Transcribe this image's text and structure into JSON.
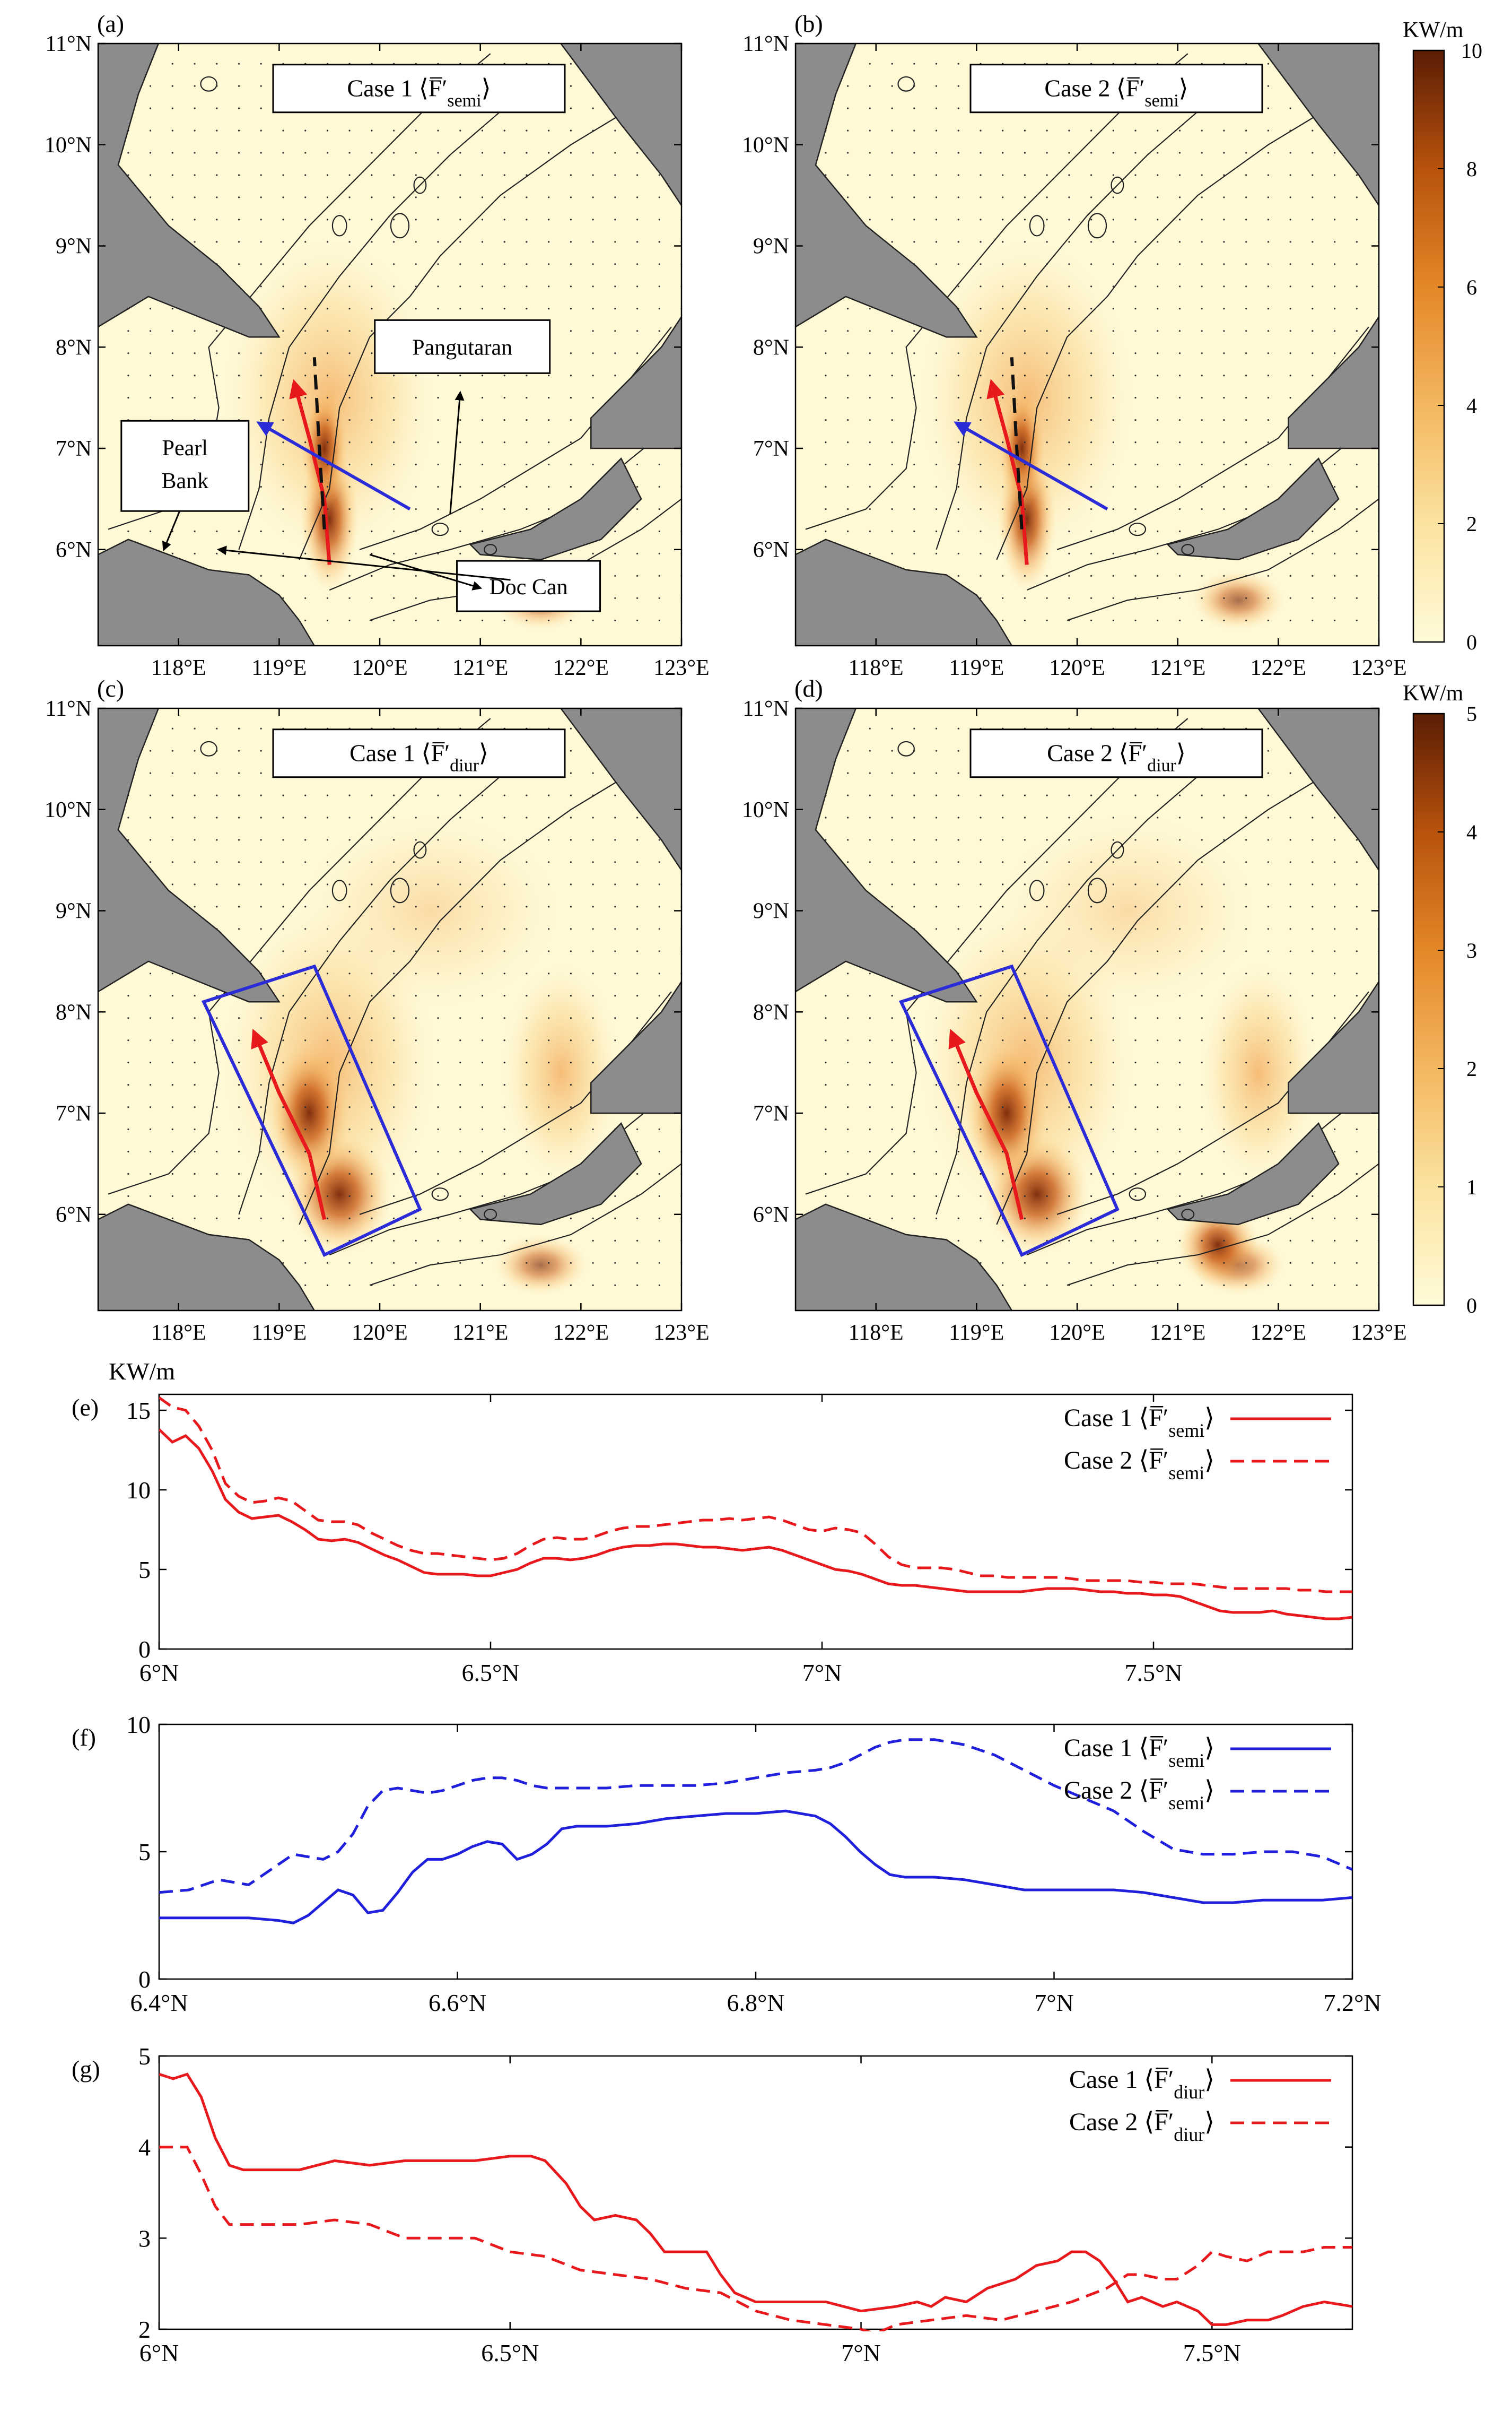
{
  "maps": {
    "x_ticks": [
      "118°E",
      "119°E",
      "120°E",
      "121°E",
      "122°E",
      "123°E"
    ],
    "y_ticks": [
      "11°N",
      "10°N",
      "9°N",
      "8°N",
      "7°N",
      "6°N"
    ],
    "lon_range": [
      117.2,
      123.0
    ],
    "lat_range": [
      5.05,
      11.0
    ],
    "land_color": "#8c8c8c",
    "ocean_color": "#fff9d6",
    "panels": [
      {
        "letter": "(a)",
        "case": "Case 1",
        "sub": "semi",
        "cmap_max": 10,
        "labels": [
          "Pangutaran",
          "Pearl\nBank",
          "Doc Can"
        ],
        "arrows": [
          "red",
          "blue"
        ],
        "box": false
      },
      {
        "letter": "(b)",
        "case": "Case 2",
        "sub": "semi",
        "cmap_max": 10,
        "labels": [],
        "arrows": [
          "red",
          "blue"
        ],
        "box": false
      },
      {
        "letter": "(c)",
        "case": "Case 1",
        "sub": "diur",
        "cmap_max": 5,
        "labels": [],
        "arrows": [
          "red"
        ],
        "box": true
      },
      {
        "letter": "(d)",
        "case": "Case 2",
        "sub": "diur",
        "cmap_max": 5,
        "labels": [],
        "arrows": [
          "red"
        ],
        "box": true
      }
    ],
    "colorbars": [
      {
        "unit": "KW/m",
        "ticks": [
          0,
          2,
          4,
          6,
          8,
          10
        ]
      },
      {
        "unit": "KW/m",
        "ticks": [
          0,
          1,
          2,
          3,
          4,
          5
        ]
      }
    ]
  },
  "chart_data": [
    {
      "type": "line",
      "panel": "(e)",
      "ylabel": "KW/m",
      "xlim": [
        6.0,
        7.8
      ],
      "ylim": [
        0,
        16
      ],
      "x_ticks": [
        6.0,
        6.5,
        7.0,
        7.5
      ],
      "x_tick_labels": [
        "6°N",
        "6.5°N",
        "7°N",
        "7.5°N"
      ],
      "y_ticks": [
        0,
        5,
        10,
        15
      ],
      "color": "#e8191d",
      "legend": "top-right",
      "series": [
        {
          "case": "Case 1",
          "sub": "semi",
          "dash": false,
          "x": [
            6.0,
            6.02,
            6.04,
            6.06,
            6.08,
            6.1,
            6.12,
            6.14,
            6.16,
            6.18,
            6.2,
            6.22,
            6.24,
            6.26,
            6.28,
            6.3,
            6.32,
            6.34,
            6.36,
            6.38,
            6.4,
            6.42,
            6.44,
            6.46,
            6.48,
            6.5,
            6.52,
            6.54,
            6.56,
            6.58,
            6.6,
            6.62,
            6.64,
            6.66,
            6.68,
            6.7,
            6.72,
            6.74,
            6.76,
            6.78,
            6.8,
            6.82,
            6.84,
            6.86,
            6.88,
            6.9,
            6.92,
            6.94,
            6.96,
            6.98,
            7.0,
            7.02,
            7.04,
            7.06,
            7.08,
            7.1,
            7.12,
            7.14,
            7.16,
            7.18,
            7.2,
            7.22,
            7.24,
            7.26,
            7.28,
            7.3,
            7.32,
            7.34,
            7.36,
            7.38,
            7.4,
            7.42,
            7.44,
            7.46,
            7.48,
            7.5,
            7.52,
            7.54,
            7.56,
            7.58,
            7.6,
            7.62,
            7.64,
            7.66,
            7.68,
            7.7,
            7.72,
            7.74,
            7.76,
            7.78,
            7.8
          ],
          "y": [
            13.8,
            13.0,
            13.4,
            12.6,
            11.2,
            9.4,
            8.6,
            8.2,
            8.3,
            8.4,
            8.0,
            7.5,
            6.9,
            6.8,
            6.9,
            6.7,
            6.3,
            5.9,
            5.6,
            5.2,
            4.8,
            4.7,
            4.7,
            4.7,
            4.6,
            4.6,
            4.8,
            5.0,
            5.4,
            5.7,
            5.7,
            5.6,
            5.7,
            5.9,
            6.2,
            6.4,
            6.5,
            6.5,
            6.6,
            6.6,
            6.5,
            6.4,
            6.4,
            6.3,
            6.2,
            6.3,
            6.4,
            6.2,
            5.9,
            5.6,
            5.3,
            5.0,
            4.9,
            4.7,
            4.4,
            4.1,
            4.0,
            4.0,
            3.9,
            3.8,
            3.7,
            3.6,
            3.6,
            3.6,
            3.6,
            3.6,
            3.7,
            3.8,
            3.8,
            3.8,
            3.7,
            3.6,
            3.6,
            3.5,
            3.5,
            3.4,
            3.4,
            3.3,
            3.0,
            2.7,
            2.4,
            2.3,
            2.3,
            2.3,
            2.4,
            2.2,
            2.1,
            2.0,
            1.9,
            1.9,
            2.0
          ]
        },
        {
          "case": "Case 2",
          "sub": "semi",
          "dash": true,
          "x": [
            6.0,
            6.02,
            6.04,
            6.06,
            6.08,
            6.1,
            6.12,
            6.14,
            6.16,
            6.18,
            6.2,
            6.22,
            6.24,
            6.26,
            6.28,
            6.3,
            6.32,
            6.34,
            6.36,
            6.38,
            6.4,
            6.42,
            6.44,
            6.46,
            6.48,
            6.5,
            6.52,
            6.54,
            6.56,
            6.58,
            6.6,
            6.62,
            6.64,
            6.66,
            6.68,
            6.7,
            6.72,
            6.74,
            6.76,
            6.78,
            6.8,
            6.82,
            6.84,
            6.86,
            6.88,
            6.9,
            6.92,
            6.94,
            6.96,
            6.98,
            7.0,
            7.02,
            7.04,
            7.06,
            7.08,
            7.1,
            7.12,
            7.14,
            7.16,
            7.18,
            7.2,
            7.22,
            7.24,
            7.26,
            7.28,
            7.3,
            7.32,
            7.34,
            7.36,
            7.38,
            7.4,
            7.42,
            7.44,
            7.46,
            7.48,
            7.5,
            7.52,
            7.54,
            7.56,
            7.58,
            7.6,
            7.62,
            7.64,
            7.66,
            7.68,
            7.7,
            7.72,
            7.74,
            7.76,
            7.78,
            7.8
          ],
          "y": [
            15.8,
            15.2,
            15.0,
            14.0,
            12.5,
            10.4,
            9.6,
            9.2,
            9.3,
            9.5,
            9.3,
            8.7,
            8.1,
            8.0,
            8.0,
            7.8,
            7.3,
            6.9,
            6.5,
            6.2,
            6.0,
            6.0,
            5.9,
            5.8,
            5.7,
            5.6,
            5.7,
            6.0,
            6.5,
            6.9,
            7.0,
            6.9,
            6.9,
            7.1,
            7.4,
            7.6,
            7.7,
            7.7,
            7.8,
            7.9,
            8.0,
            8.1,
            8.1,
            8.2,
            8.1,
            8.2,
            8.3,
            8.1,
            7.8,
            7.5,
            7.4,
            7.6,
            7.5,
            7.3,
            6.6,
            5.8,
            5.3,
            5.1,
            5.1,
            5.1,
            5.0,
            4.8,
            4.6,
            4.6,
            4.5,
            4.5,
            4.5,
            4.5,
            4.5,
            4.4,
            4.3,
            4.3,
            4.3,
            4.3,
            4.2,
            4.2,
            4.1,
            4.1,
            4.1,
            4.0,
            3.9,
            3.8,
            3.8,
            3.8,
            3.8,
            3.8,
            3.7,
            3.7,
            3.6,
            3.6,
            3.6
          ]
        }
      ]
    },
    {
      "type": "line",
      "panel": "(f)",
      "xlim": [
        6.4,
        7.2
      ],
      "ylim": [
        0,
        10
      ],
      "x_ticks": [
        6.4,
        6.6,
        6.8,
        7.0,
        7.2
      ],
      "x_tick_labels": [
        "6.4°N",
        "6.6°N",
        "6.8°N",
        "7°N",
        "7.2°N"
      ],
      "y_ticks": [
        0,
        5,
        10
      ],
      "color": "#1f1fdc",
      "legend": "top-right",
      "series": [
        {
          "case": "Case 1",
          "sub": "semi",
          "dash": false,
          "x": [
            6.4,
            6.42,
            6.44,
            6.46,
            6.48,
            6.49,
            6.5,
            6.51,
            6.52,
            6.53,
            6.54,
            6.55,
            6.56,
            6.57,
            6.58,
            6.59,
            6.6,
            6.61,
            6.62,
            6.63,
            6.64,
            6.65,
            6.66,
            6.67,
            6.68,
            6.7,
            6.72,
            6.74,
            6.76,
            6.78,
            6.8,
            6.82,
            6.84,
            6.85,
            6.86,
            6.87,
            6.88,
            6.89,
            6.9,
            6.92,
            6.94,
            6.96,
            6.98,
            7.0,
            7.02,
            7.04,
            7.06,
            7.08,
            7.1,
            7.12,
            7.14,
            7.16,
            7.18,
            7.2
          ],
          "y": [
            2.4,
            2.4,
            2.4,
            2.4,
            2.3,
            2.2,
            2.5,
            3.0,
            3.5,
            3.3,
            2.6,
            2.7,
            3.4,
            4.2,
            4.7,
            4.7,
            4.9,
            5.2,
            5.4,
            5.3,
            4.7,
            4.9,
            5.3,
            5.9,
            6.0,
            6.0,
            6.1,
            6.3,
            6.4,
            6.5,
            6.5,
            6.6,
            6.4,
            6.1,
            5.6,
            5.0,
            4.5,
            4.1,
            4.0,
            4.0,
            3.9,
            3.7,
            3.5,
            3.5,
            3.5,
            3.5,
            3.4,
            3.2,
            3.0,
            3.0,
            3.1,
            3.1,
            3.1,
            3.2
          ]
        },
        {
          "case": "Case 2",
          "sub": "semi",
          "dash": true,
          "x": [
            6.4,
            6.42,
            6.44,
            6.46,
            6.48,
            6.49,
            6.5,
            6.51,
            6.52,
            6.53,
            6.54,
            6.55,
            6.56,
            6.57,
            6.58,
            6.59,
            6.6,
            6.61,
            6.62,
            6.63,
            6.64,
            6.65,
            6.66,
            6.67,
            6.68,
            6.7,
            6.72,
            6.74,
            6.76,
            6.78,
            6.8,
            6.82,
            6.84,
            6.85,
            6.86,
            6.87,
            6.88,
            6.89,
            6.9,
            6.92,
            6.94,
            6.96,
            6.98,
            7.0,
            7.02,
            7.04,
            7.06,
            7.08,
            7.1,
            7.12,
            7.14,
            7.16,
            7.18,
            7.2
          ],
          "y": [
            3.4,
            3.5,
            3.9,
            3.7,
            4.5,
            4.9,
            4.8,
            4.7,
            5.0,
            5.7,
            6.8,
            7.4,
            7.5,
            7.4,
            7.3,
            7.4,
            7.6,
            7.8,
            7.9,
            7.9,
            7.8,
            7.6,
            7.5,
            7.5,
            7.5,
            7.5,
            7.6,
            7.6,
            7.6,
            7.7,
            7.9,
            8.1,
            8.2,
            8.3,
            8.5,
            8.8,
            9.1,
            9.3,
            9.4,
            9.4,
            9.2,
            8.8,
            8.2,
            7.6,
            7.1,
            6.6,
            5.8,
            5.1,
            4.9,
            4.9,
            5.0,
            5.0,
            4.8,
            4.3
          ]
        }
      ]
    },
    {
      "type": "line",
      "panel": "(g)",
      "xlim": [
        6.0,
        7.7
      ],
      "ylim": [
        2,
        5
      ],
      "x_ticks": [
        6.0,
        6.5,
        7.0,
        7.5
      ],
      "x_tick_labels": [
        "6°N",
        "6.5°N",
        "7°N",
        "7.5°N"
      ],
      "y_ticks": [
        2,
        3,
        4,
        5
      ],
      "color": "#e8191d",
      "legend": "top-right",
      "series": [
        {
          "case": "Case 1",
          "sub": "diur",
          "dash": false,
          "x": [
            6.0,
            6.02,
            6.04,
            6.06,
            6.08,
            6.1,
            6.12,
            6.15,
            6.2,
            6.25,
            6.3,
            6.35,
            6.4,
            6.45,
            6.5,
            6.53,
            6.55,
            6.58,
            6.6,
            6.62,
            6.65,
            6.68,
            6.7,
            6.72,
            6.75,
            6.78,
            6.8,
            6.82,
            6.85,
            6.88,
            6.9,
            6.95,
            7.0,
            7.05,
            7.08,
            7.1,
            7.12,
            7.15,
            7.18,
            7.2,
            7.22,
            7.25,
            7.28,
            7.3,
            7.32,
            7.34,
            7.36,
            7.38,
            7.4,
            7.43,
            7.45,
            7.48,
            7.5,
            7.52,
            7.55,
            7.58,
            7.6,
            7.63,
            7.66,
            7.7
          ],
          "y": [
            4.8,
            4.75,
            4.8,
            4.55,
            4.1,
            3.8,
            3.75,
            3.75,
            3.75,
            3.85,
            3.8,
            3.85,
            3.85,
            3.85,
            3.9,
            3.9,
            3.85,
            3.6,
            3.35,
            3.2,
            3.25,
            3.2,
            3.05,
            2.85,
            2.85,
            2.85,
            2.6,
            2.4,
            2.3,
            2.3,
            2.3,
            2.3,
            2.2,
            2.25,
            2.3,
            2.25,
            2.35,
            2.3,
            2.45,
            2.5,
            2.55,
            2.7,
            2.75,
            2.85,
            2.85,
            2.75,
            2.55,
            2.3,
            2.35,
            2.25,
            2.3,
            2.2,
            2.05,
            2.05,
            2.1,
            2.1,
            2.15,
            2.25,
            2.3,
            2.25
          ]
        },
        {
          "case": "Case 2",
          "sub": "diur",
          "dash": true,
          "x": [
            6.0,
            6.02,
            6.04,
            6.06,
            6.08,
            6.1,
            6.12,
            6.15,
            6.2,
            6.25,
            6.3,
            6.35,
            6.4,
            6.45,
            6.5,
            6.55,
            6.6,
            6.65,
            6.7,
            6.75,
            6.8,
            6.85,
            6.9,
            6.95,
            7.0,
            7.02,
            7.05,
            7.1,
            7.15,
            7.2,
            7.25,
            7.3,
            7.35,
            7.38,
            7.4,
            7.43,
            7.45,
            7.48,
            7.5,
            7.52,
            7.55,
            7.58,
            7.6,
            7.63,
            7.66,
            7.7
          ],
          "y": [
            4.0,
            4.0,
            4.0,
            3.7,
            3.35,
            3.15,
            3.15,
            3.15,
            3.15,
            3.2,
            3.15,
            3.0,
            3.0,
            3.0,
            2.85,
            2.8,
            2.65,
            2.6,
            2.55,
            2.45,
            2.4,
            2.2,
            2.1,
            2.05,
            2.0,
            1.95,
            2.05,
            2.1,
            2.15,
            2.1,
            2.2,
            2.3,
            2.45,
            2.6,
            2.6,
            2.55,
            2.55,
            2.7,
            2.85,
            2.8,
            2.75,
            2.85,
            2.85,
            2.85,
            2.9,
            2.9
          ]
        }
      ]
    }
  ]
}
